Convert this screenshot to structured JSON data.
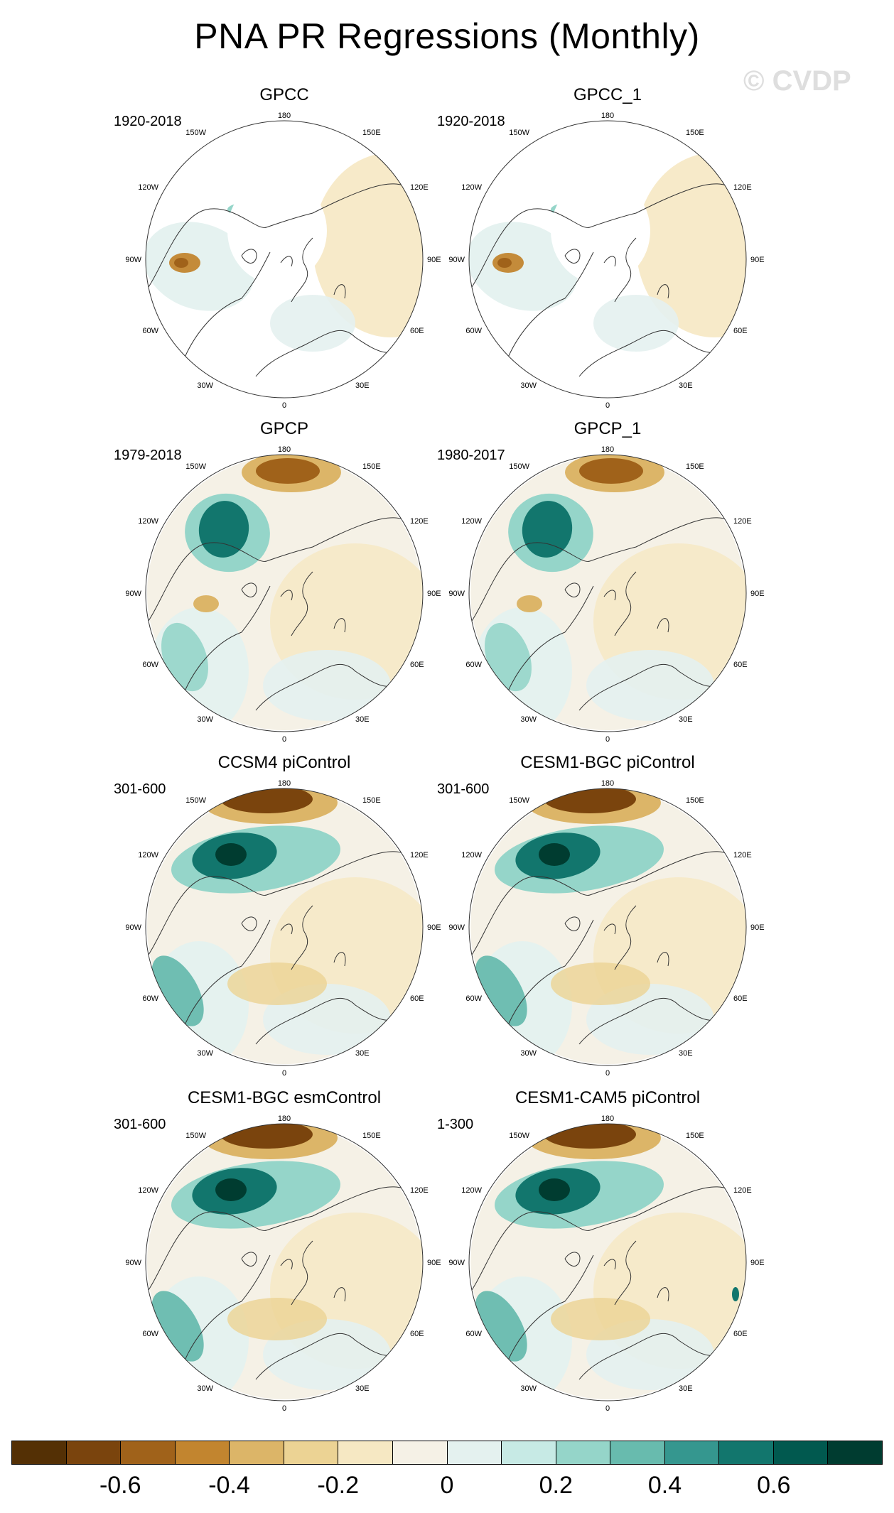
{
  "title": "PNA PR Regressions (Monthly)",
  "watermark": "© CVDP",
  "map_labels": {
    "lon_top": "180",
    "lon_150w": "150W",
    "lon_150e": "150E",
    "lon_120w": "120W",
    "lon_120e": "120E",
    "lon_90w": "90W",
    "lon_90e": "90E",
    "lon_60w": "60W",
    "lon_60e": "60E",
    "lon_30w": "30W",
    "lon_30e": "30E",
    "lon_bottom": "0"
  },
  "panels": [
    {
      "title": "GPCC",
      "period": "1920-2018",
      "style": "land"
    },
    {
      "title": "GPCC_1",
      "period": "1920-2018",
      "style": "land"
    },
    {
      "title": "GPCP",
      "period": "1979-2018",
      "style": "obs"
    },
    {
      "title": "GPCP_1",
      "period": "1980-2017",
      "style": "obs"
    },
    {
      "title": "CCSM4 piControl",
      "period": "301-600",
      "style": "model"
    },
    {
      "title": "CESM1-BGC piControl",
      "period": "301-600",
      "style": "model"
    },
    {
      "title": "CESM1-BGC esmControl",
      "period": "301-600",
      "style": "model"
    },
    {
      "title": "CESM1-CAM5 piControl",
      "period": "1-300",
      "style": "model2"
    }
  ],
  "colorbar": {
    "colors": [
      "#543005",
      "#7a440d",
      "#a0621a",
      "#c2852f",
      "#dcb568",
      "#ecd394",
      "#f6e8c3",
      "#f5f1e6",
      "#e4f1ef",
      "#c7eae5",
      "#95d5c9",
      "#68bbae",
      "#35978f",
      "#12766d",
      "#01594f",
      "#003c30"
    ],
    "tick_labels": [
      "-0.6",
      "-0.4",
      "-0.2",
      "0",
      "0.2",
      "0.4",
      "0.6"
    ]
  }
}
